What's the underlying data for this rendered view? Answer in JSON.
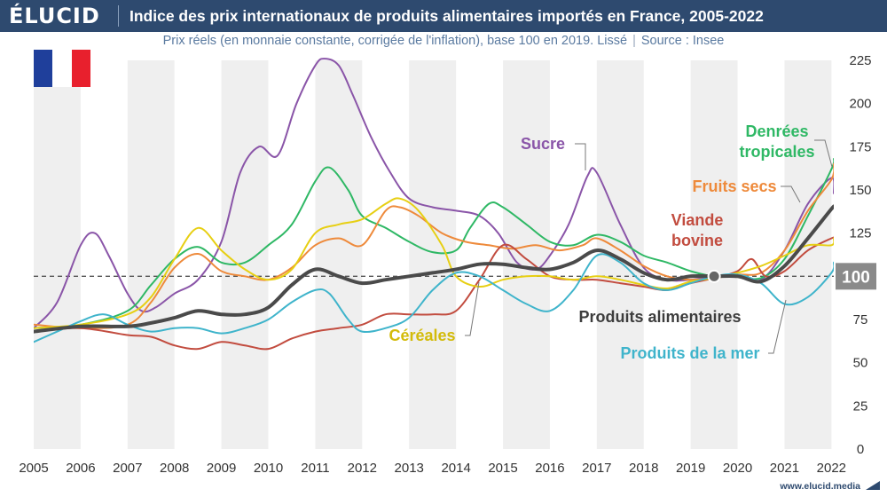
{
  "header": {
    "logo_text": "ÉLUCID",
    "title": "Indice des prix internationaux de produits alimentaires importés en France, 2005-2022"
  },
  "subtitle": {
    "main": "Prix réels (en monnaie constante, corrigée de l'inflation), base 100 en 2019. Lissé",
    "separator": "|",
    "source": "Source : Insee"
  },
  "flag": {
    "colors": [
      "#1f3f9b",
      "#ffffff",
      "#e8202d"
    ]
  },
  "footer": {
    "url": "www.elucid.media"
  },
  "chart_data": {
    "type": "line",
    "x_axis": {
      "min": 2005,
      "max": 2022.05,
      "tick_labels": [
        "2005",
        "2006",
        "2007",
        "2008",
        "2009",
        "2010",
        "2011",
        "2012",
        "2013",
        "2014",
        "2015",
        "2016",
        "2017",
        "2018",
        "2019",
        "2020",
        "2021",
        "2022"
      ]
    },
    "y_axis": {
      "min": 0,
      "max": 225,
      "tick_labels": [
        "0",
        "25",
        "50",
        "75",
        "100",
        "125",
        "150",
        "175",
        "200",
        "225"
      ]
    },
    "grid": "alternating-year-bands",
    "reference_line": {
      "value": 100,
      "label": "100"
    },
    "highlight_point": {
      "x": 2019.5,
      "y": 100
    },
    "series": [
      {
        "name": "Sucre",
        "color": "#8a55a8",
        "width": 2,
        "x": [
          2005,
          2005.5,
          2006,
          2006.3,
          2006.6,
          2007,
          2007.3,
          2007.6,
          2008,
          2008.5,
          2009,
          2009.4,
          2009.8,
          2010.2,
          2010.6,
          2011,
          2011.2,
          2011.5,
          2011.8,
          2012.2,
          2012.6,
          2013,
          2013.5,
          2014,
          2014.5,
          2014.9,
          2015.3,
          2015.7,
          2016,
          2016.4,
          2016.8,
          2017,
          2017.5,
          2018,
          2018.5,
          2019,
          2019.5,
          2020,
          2020.5,
          2021,
          2021.5,
          2022,
          2022.05
        ],
        "y": [
          70,
          85,
          118,
          125,
          112,
          90,
          80,
          82,
          90,
          98,
          120,
          160,
          175,
          170,
          200,
          222,
          226,
          222,
          205,
          180,
          160,
          145,
          140,
          138,
          135,
          125,
          108,
          104,
          112,
          130,
          158,
          160,
          130,
          105,
          98,
          98,
          100,
          101,
          98,
          115,
          142,
          157,
          148
        ]
      },
      {
        "name": "Denrées tropicales",
        "color": "#2fb865",
        "width": 2,
        "x": [
          2005,
          2006,
          2007,
          2007.5,
          2008,
          2008.5,
          2009,
          2009.5,
          2010,
          2010.5,
          2011,
          2011.3,
          2011.7,
          2012,
          2012.5,
          2013,
          2013.5,
          2014,
          2014.3,
          2014.7,
          2015,
          2015.5,
          2016,
          2016.5,
          2017,
          2017.5,
          2018,
          2018.5,
          2019,
          2019.5,
          2020,
          2020.5,
          2021,
          2021.5,
          2022,
          2022.05
        ],
        "y": [
          70,
          72,
          80,
          95,
          110,
          117,
          108,
          108,
          118,
          130,
          155,
          163,
          150,
          135,
          128,
          120,
          114,
          115,
          128,
          142,
          140,
          130,
          120,
          118,
          124,
          120,
          112,
          108,
          103,
          100,
          100,
          99,
          110,
          135,
          162,
          168
        ]
      },
      {
        "name": "Fruits secs",
        "color": "#ee8a3b",
        "width": 2,
        "x": [
          2005,
          2006,
          2007,
          2007.5,
          2008,
          2008.5,
          2009,
          2009.5,
          2010,
          2010.5,
          2011,
          2011.5,
          2012,
          2012.5,
          2012.8,
          2013.2,
          2013.7,
          2014.2,
          2014.7,
          2015.2,
          2015.7,
          2016.2,
          2016.7,
          2017,
          2017.5,
          2018,
          2018.5,
          2019,
          2019.5,
          2020,
          2020.5,
          2021,
          2021.5,
          2022,
          2022.05
        ],
        "y": [
          72,
          70,
          72,
          85,
          105,
          113,
          103,
          100,
          98,
          105,
          118,
          122,
          118,
          138,
          140,
          135,
          125,
          120,
          118,
          116,
          118,
          115,
          118,
          122,
          115,
          106,
          100,
          98,
          99,
          101,
          102,
          115,
          138,
          156,
          165
        ]
      },
      {
        "name": "Viande bovine",
        "color": "#c24c3f",
        "width": 2,
        "x": [
          2005,
          2006,
          2007,
          2007.5,
          2008,
          2008.5,
          2009,
          2009.5,
          2010,
          2010.5,
          2011,
          2011.5,
          2012,
          2012.5,
          2013,
          2013.5,
          2014,
          2014.5,
          2015,
          2015.5,
          2016,
          2016.5,
          2017,
          2017.5,
          2018,
          2018.5,
          2019,
          2019.5,
          2020,
          2020.3,
          2020.6,
          2021,
          2021.5,
          2022,
          2022.05
        ],
        "y": [
          68,
          70,
          66,
          65,
          60,
          58,
          62,
          60,
          58,
          64,
          68,
          70,
          72,
          78,
          78,
          78,
          80,
          98,
          118,
          110,
          100,
          98,
          98,
          96,
          94,
          92,
          96,
          99,
          103,
          110,
          100,
          103,
          115,
          122,
          122
        ]
      },
      {
        "name": "Céréales",
        "color": "#e7cf13",
        "width": 2,
        "x": [
          2005,
          2006,
          2007,
          2007.5,
          2008,
          2008.5,
          2009,
          2009.5,
          2010,
          2010.5,
          2011,
          2011.5,
          2012,
          2012.5,
          2012.8,
          2013.2,
          2013.7,
          2014,
          2014.5,
          2015,
          2015.5,
          2016,
          2016.5,
          2017,
          2017.5,
          2018,
          2018.5,
          2019,
          2019.5,
          2020,
          2020.5,
          2021,
          2021.5,
          2022,
          2022.05
        ],
        "y": [
          70,
          72,
          78,
          88,
          110,
          128,
          115,
          104,
          98,
          104,
          125,
          130,
          133,
          142,
          145,
          138,
          118,
          100,
          94,
          98,
          100,
          100,
          98,
          100,
          98,
          95,
          93,
          97,
          99,
          102,
          106,
          112,
          118,
          118,
          122
        ]
      },
      {
        "name": "Produits de la mer",
        "color": "#3fb4cb",
        "width": 2,
        "x": [
          2005,
          2005.5,
          2006,
          2006.5,
          2007,
          2007.5,
          2008,
          2008.5,
          2009,
          2009.5,
          2010,
          2010.5,
          2011,
          2011.3,
          2011.7,
          2012,
          2012.5,
          2013,
          2013.5,
          2014,
          2014.5,
          2015,
          2015.5,
          2016,
          2016.5,
          2017,
          2017.5,
          2018,
          2018.5,
          2019,
          2019.5,
          2020,
          2020.5,
          2021,
          2021.5,
          2022,
          2022.05
        ],
        "y": [
          62,
          68,
          74,
          78,
          72,
          68,
          70,
          70,
          67,
          70,
          75,
          85,
          92,
          90,
          75,
          68,
          70,
          76,
          92,
          102,
          100,
          92,
          84,
          80,
          92,
          112,
          108,
          96,
          92,
          96,
          100,
          101,
          96,
          84,
          88,
          102,
          108
        ]
      },
      {
        "name": "Produits alimentaires",
        "color": "#4a4a4a",
        "width": 4,
        "x": [
          2005,
          2006,
          2007,
          2007.5,
          2008,
          2008.5,
          2009,
          2009.5,
          2010,
          2010.5,
          2011,
          2011.5,
          2012,
          2012.5,
          2013,
          2013.5,
          2014,
          2014.5,
          2015,
          2015.5,
          2016,
          2016.5,
          2017,
          2017.5,
          2018,
          2018.5,
          2019,
          2019.5,
          2020,
          2020.5,
          2021,
          2021.5,
          2022,
          2022.05
        ],
        "y": [
          68,
          71,
          71,
          73,
          76,
          80,
          78,
          78,
          82,
          95,
          104,
          100,
          96,
          98,
          100,
          102,
          104,
          107,
          107,
          105,
          104,
          108,
          115,
          110,
          102,
          98,
          100,
          100,
          100,
          97,
          106,
          122,
          139,
          140
        ]
      }
    ],
    "labels": [
      {
        "text": "Sucre",
        "color": "#8a55a8",
        "lines": [
          "Sucre"
        ]
      },
      {
        "text": "Denrées tropicales",
        "color": "#2fb865",
        "lines": [
          "Denrées",
          "tropicales"
        ]
      },
      {
        "text": "Fruits secs",
        "color": "#ee8a3b",
        "lines": [
          "Fruits secs"
        ]
      },
      {
        "text": "Viande bovine",
        "color": "#c24c3f",
        "lines": [
          "Viande",
          "bovine"
        ]
      },
      {
        "text": "Céréales",
        "color": "#d3bb0a",
        "lines": [
          "Céréales"
        ]
      },
      {
        "text": "Produits de la mer",
        "color": "#3fb4cb",
        "lines": [
          "Produits de la mer"
        ]
      },
      {
        "text": "Produits alimentaires",
        "color": "#3d3d3d",
        "lines": [
          "Produits alimentaires"
        ]
      }
    ]
  }
}
